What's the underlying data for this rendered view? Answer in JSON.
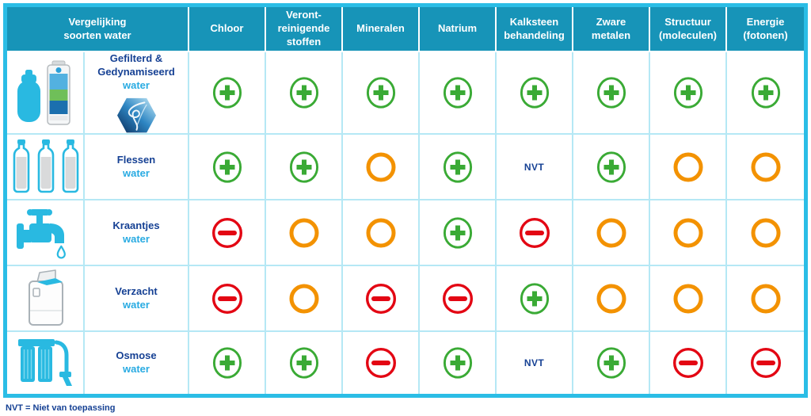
{
  "table": {
    "title": "Vergelijking\nsoorten water",
    "columns": [
      "Chloor",
      "Veront-\nreinigende\nstoffen",
      "Mineralen",
      "Natrium",
      "Kalksteen\nbehandeling",
      "Zware\nmetalen",
      "Structuur\n(moleculen)",
      "Energie\n(fotonen)"
    ],
    "nvt_label": "NVT",
    "rows": [
      {
        "name": "Gefilterd &\nGedynamiseerd",
        "sub": "water",
        "icon": "filter-product",
        "badge": "swirl-hexagon",
        "values": [
          "plus",
          "plus",
          "plus",
          "plus",
          "plus",
          "plus",
          "plus",
          "plus"
        ]
      },
      {
        "name": "Flessen",
        "sub": "water",
        "icon": "bottles",
        "values": [
          "plus",
          "plus",
          "neutral",
          "plus",
          "nvt",
          "plus",
          "neutral",
          "neutral"
        ]
      },
      {
        "name": "Kraantjes",
        "sub": "water",
        "icon": "tap",
        "values": [
          "minus",
          "neutral",
          "neutral",
          "plus",
          "minus",
          "neutral",
          "neutral",
          "neutral"
        ]
      },
      {
        "name": "Verzacht",
        "sub": "water",
        "icon": "softener",
        "values": [
          "minus",
          "neutral",
          "minus",
          "minus",
          "plus",
          "neutral",
          "neutral",
          "neutral"
        ]
      },
      {
        "name": "Osmose",
        "sub": "water",
        "icon": "osmose",
        "values": [
          "plus",
          "plus",
          "minus",
          "plus",
          "nvt",
          "plus",
          "minus",
          "minus"
        ]
      }
    ]
  },
  "footer": {
    "note": "NVT = Niet van toepassing"
  },
  "colors": {
    "header_bg": "#1794b8",
    "outer_border": "#2bbde6",
    "cell_border": "#b5e8f5",
    "positive_green": "#3aaa35",
    "neutral_orange": "#f39200",
    "negative_red": "#e30613",
    "navy_text": "#164194",
    "cyan_text": "#29abe2",
    "icon_cyan": "#29b9e1"
  }
}
